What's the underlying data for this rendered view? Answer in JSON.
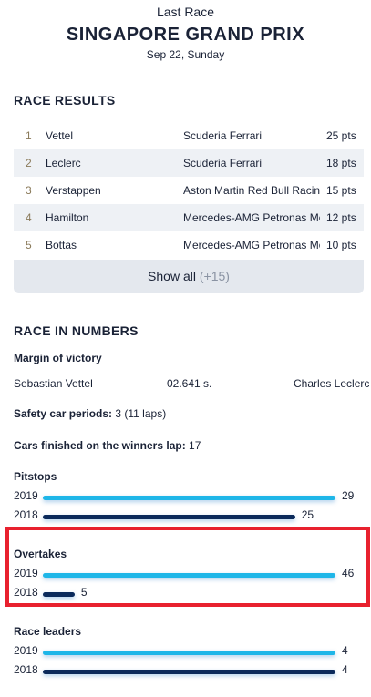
{
  "header": {
    "label": "Last Race",
    "title": "SINGAPORE GRAND PRIX",
    "date": "Sep 22, Sunday"
  },
  "results": {
    "title": "RACE RESULTS",
    "rows": [
      [
        1,
        "Vettel",
        "Scuderia Ferrari",
        "25 pts"
      ],
      [
        2,
        "Leclerc",
        "Scuderia Ferrari",
        "18 pts"
      ],
      [
        3,
        "Verstappen",
        "Aston Martin Red Bull Racing",
        "15 pts"
      ],
      [
        4,
        "Hamilton",
        "Mercedes-AMG Petronas Motorsport",
        "12 pts"
      ],
      [
        5,
        "Bottas",
        "Mercedes-AMG Petronas Motorsport",
        "10 pts"
      ]
    ],
    "show_all": "Show all",
    "show_all_count": "(+15)"
  },
  "numbers": {
    "title": "RACE IN NUMBERS",
    "margin": {
      "label": "Margin of victory",
      "winner": "Sebastian Vettel",
      "gap": "02.641 s.",
      "second": "Charles Leclerc"
    },
    "facts": [
      {
        "label": "Safety car periods:",
        "value": "3 (11 laps)"
      },
      {
        "label": "Cars finished on the winners lap:",
        "value": "17"
      }
    ],
    "stats": [
      {
        "title": "Pitstops",
        "rows": [
          {
            "year": "2019",
            "value": 29,
            "color": "#1eb6e8"
          },
          {
            "year": "2018",
            "value": 25,
            "color": "#0b2a5b"
          }
        ]
      },
      {
        "title": "Overtakes",
        "highlight": true,
        "rows": [
          {
            "year": "2019",
            "value": 46,
            "color": "#1eb6e8"
          },
          {
            "year": "2018",
            "value": 5,
            "color": "#0b2a5b"
          }
        ]
      },
      {
        "title": "Race leaders",
        "rows": [
          {
            "year": "2019",
            "value": 4,
            "color": "#1eb6e8"
          },
          {
            "year": "2018",
            "value": 4,
            "color": "#0b2a5b"
          }
        ]
      }
    ]
  }
}
